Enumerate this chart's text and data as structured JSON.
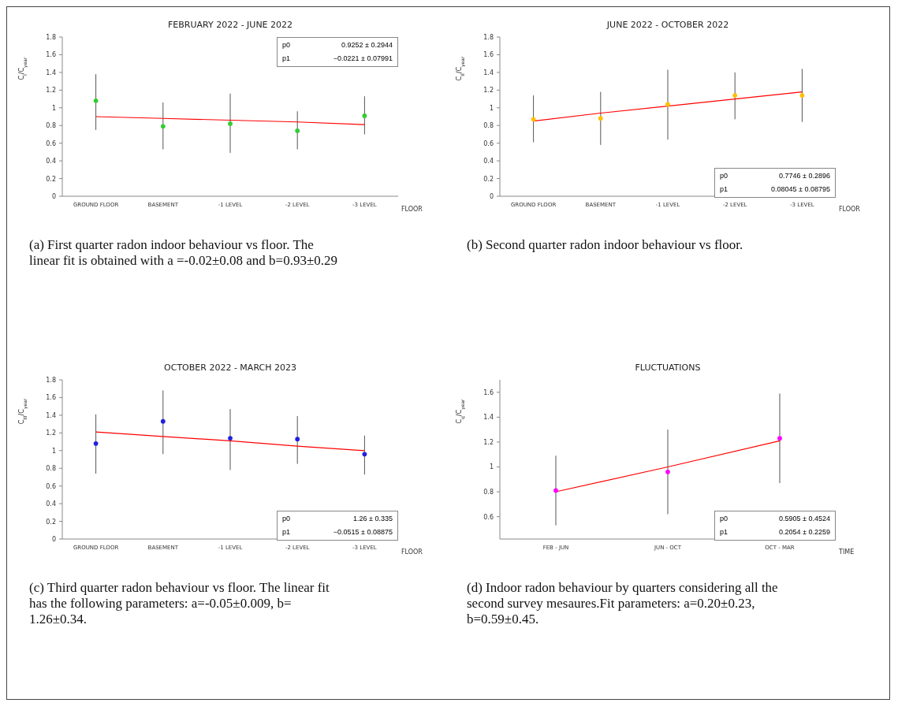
{
  "chart_data": [
    {
      "type": "scatter",
      "title": "FEBRUARY 2022 - JUNE 2022",
      "xlabel": "FLOOR",
      "ylabel": "C$_{I}$/C$_{year}$",
      "categories": [
        "GROUND FLOOR",
        "BASEMENT",
        "-1 LEVEL",
        "-2 LEVEL",
        "-3 LEVEL"
      ],
      "ylim": [
        0,
        1.8
      ],
      "yticks": [
        0,
        0.2,
        0.4,
        0.6,
        0.8,
        1,
        1.2,
        1.4,
        1.6,
        1.8
      ],
      "series": [
        {
          "marker": "circle",
          "color": "#33cc33",
          "values": [
            1.08,
            0.79,
            0.82,
            0.74,
            0.91
          ],
          "errors": [
            [
              0.75,
              1.38
            ],
            [
              0.53,
              1.06
            ],
            [
              0.49,
              1.16
            ],
            [
              0.53,
              0.96
            ],
            [
              0.7,
              1.13
            ]
          ]
        },
        {
          "type": "line",
          "color": "#ff0000",
          "values": [
            0.9,
            0.88,
            0.86,
            0.84,
            0.81
          ]
        }
      ],
      "annotations": [
        "p0 0.9252 ± 0.2944",
        "p1 −0.0221 ± 0.07991",
        "(a) First quarter radon indoor behaviour vs floor. The linear fit is obtained with a =-0.02±0.08 and b=0.93±0.29"
      ]
    },
    {
      "type": "scatter",
      "title": "JUNE 2022 - OCTOBER 2022",
      "xlabel": "FLOOR",
      "ylabel": "C$_{II}$/C$_{year}$",
      "categories": [
        "GROUND FLOOR",
        "BASEMENT",
        "-1 LEVEL",
        "-2 LEVEL",
        "-3 LEVEL"
      ],
      "ylim": [
        0,
        1.8
      ],
      "yticks": [
        0,
        0.2,
        0.4,
        0.6,
        0.8,
        1,
        1.2,
        1.4,
        1.6,
        1.8
      ],
      "series": [
        {
          "marker": "circle",
          "color": "#ffbf00",
          "values": [
            0.87,
            0.88,
            1.04,
            1.14,
            1.14
          ],
          "errors": [
            [
              0.61,
              1.14
            ],
            [
              0.58,
              1.18
            ],
            [
              0.64,
              1.43
            ],
            [
              0.87,
              1.4
            ],
            [
              0.84,
              1.44
            ]
          ]
        },
        {
          "type": "line",
          "color": "#ff0000",
          "values": [
            0.85,
            0.94,
            1.02,
            1.1,
            1.18
          ]
        }
      ],
      "annotations": [
        "p0 0.7746 ± 0.2896",
        "p1 0.08045 ± 0.08795",
        "(b) Second quarter radon indoor behaviour vs floor."
      ]
    },
    {
      "type": "scatter",
      "title": "OCTOBER 2022 - MARCH 2023",
      "xlabel": "FLOOR",
      "ylabel": "C$_{III}$/C$_{year}$",
      "categories": [
        "GROUND FLOOR",
        "BASEMENT",
        "-1 LEVEL",
        "-2 LEVEL",
        "-3 LEVEL"
      ],
      "ylim": [
        0,
        1.8
      ],
      "yticks": [
        0,
        0.2,
        0.4,
        0.6,
        0.8,
        1,
        1.2,
        1.4,
        1.6,
        1.8
      ],
      "series": [
        {
          "marker": "circle",
          "color": "#2020e0",
          "values": [
            1.08,
            1.33,
            1.14,
            1.13,
            0.96
          ],
          "errors": [
            [
              0.74,
              1.41
            ],
            [
              0.96,
              1.68
            ],
            [
              0.78,
              1.47
            ],
            [
              0.85,
              1.39
            ],
            [
              0.73,
              1.17
            ]
          ]
        },
        {
          "type": "line",
          "color": "#ff0000",
          "values": [
            1.21,
            1.16,
            1.11,
            1.05,
            1.0
          ]
        }
      ],
      "annotations": [
        "p0 1.26 ± 0.335",
        "p1 −0.0515 ± 0.08875",
        "(c) Third quarter radon behaviour vs floor. The linear fit has the following parameters: a=-0.05±0.009, b= 1.26±0.34."
      ]
    },
    {
      "type": "scatter",
      "title": "FLUCTUATIONS",
      "xlabel": "TIME",
      "ylabel": "C$_{q}$/C$_{year}$",
      "categories": [
        "FEB - JUN",
        "JUN - OCT",
        "OCT - MAR"
      ],
      "ylim": [
        0.42,
        1.7
      ],
      "yticks": [
        0.6,
        0.8,
        1,
        1.2,
        1.4,
        1.6
      ],
      "series": [
        {
          "marker": "circle",
          "color": "#ff00ff",
          "values": [
            0.81,
            0.96,
            1.23
          ],
          "errors": [
            [
              0.53,
              1.09
            ],
            [
              0.62,
              1.3
            ],
            [
              0.87,
              1.59
            ]
          ]
        },
        {
          "type": "line",
          "color": "#ff0000",
          "values": [
            0.8,
            1.0,
            1.21
          ]
        }
      ],
      "annotations": [
        "p0 0.5905 ± 0.4524",
        "p1 0.2054 ± 0.2259",
        "(d) Indoor radon behaviour by quarters considering all the second survey mesaures.Fit parameters: a=0.20±0.23, b=0.59±0.45."
      ]
    }
  ]
}
